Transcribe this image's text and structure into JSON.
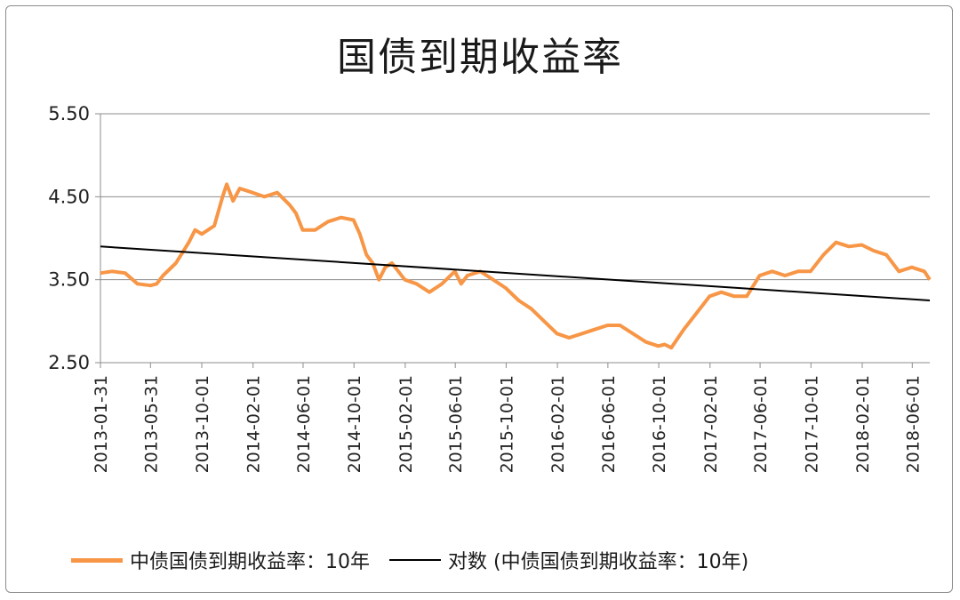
{
  "chart_data": {
    "type": "line",
    "title": "国债到期收益率",
    "xlabel": "",
    "ylabel": "",
    "ylim": [
      2.5,
      5.5
    ],
    "yticks": [
      2.5,
      3.5,
      4.5,
      5.5
    ],
    "ytick_labels": [
      "2.50",
      "3.50",
      "4.50",
      "5.50"
    ],
    "xtick_labels": [
      "2013-01-31",
      "2013-05-31",
      "2013-10-01",
      "2014-02-01",
      "2014-06-01",
      "2014-10-01",
      "2015-02-01",
      "2015-06-01",
      "2015-10-01",
      "2016-02-01",
      "2016-06-01",
      "2016-10-01",
      "2017-02-01",
      "2017-06-01",
      "2017-10-01",
      "2018-02-01",
      "2018-06-01"
    ],
    "x_range": [
      "2013-01-31",
      "2018-07-13"
    ],
    "grid": true,
    "legend_position": "bottom",
    "series": [
      {
        "name": "中债国债到期收益率：10年",
        "color": "#f79646",
        "points": [
          [
            "2013-01-31",
            3.58
          ],
          [
            "2013-02-28",
            3.6
          ],
          [
            "2013-03-31",
            3.58
          ],
          [
            "2013-04-30",
            3.45
          ],
          [
            "2013-05-31",
            3.43
          ],
          [
            "2013-06-15",
            3.45
          ],
          [
            "2013-06-30",
            3.55
          ],
          [
            "2013-07-31",
            3.7
          ],
          [
            "2013-08-31",
            3.95
          ],
          [
            "2013-09-15",
            4.1
          ],
          [
            "2013-10-01",
            4.05
          ],
          [
            "2013-10-31",
            4.15
          ],
          [
            "2013-11-20",
            4.5
          ],
          [
            "2013-11-30",
            4.65
          ],
          [
            "2013-12-15",
            4.45
          ],
          [
            "2013-12-31",
            4.6
          ],
          [
            "2014-01-31",
            4.55
          ],
          [
            "2014-02-28",
            4.5
          ],
          [
            "2014-03-31",
            4.55
          ],
          [
            "2014-04-30",
            4.4
          ],
          [
            "2014-05-15",
            4.3
          ],
          [
            "2014-05-31",
            4.1
          ],
          [
            "2014-06-30",
            4.1
          ],
          [
            "2014-07-31",
            4.2
          ],
          [
            "2014-08-31",
            4.25
          ],
          [
            "2014-09-30",
            4.22
          ],
          [
            "2014-10-15",
            4.05
          ],
          [
            "2014-10-31",
            3.8
          ],
          [
            "2014-11-15",
            3.7
          ],
          [
            "2014-11-30",
            3.5
          ],
          [
            "2014-12-15",
            3.65
          ],
          [
            "2014-12-31",
            3.7
          ],
          [
            "2015-01-31",
            3.5
          ],
          [
            "2015-02-28",
            3.45
          ],
          [
            "2015-03-31",
            3.35
          ],
          [
            "2015-04-30",
            3.45
          ],
          [
            "2015-05-31",
            3.6
          ],
          [
            "2015-06-15",
            3.45
          ],
          [
            "2015-06-30",
            3.55
          ],
          [
            "2015-07-31",
            3.6
          ],
          [
            "2015-08-31",
            3.5
          ],
          [
            "2015-09-30",
            3.4
          ],
          [
            "2015-10-31",
            3.25
          ],
          [
            "2015-11-30",
            3.15
          ],
          [
            "2015-12-31",
            3.0
          ],
          [
            "2016-01-31",
            2.85
          ],
          [
            "2016-02-29",
            2.8
          ],
          [
            "2016-03-31",
            2.85
          ],
          [
            "2016-04-30",
            2.9
          ],
          [
            "2016-05-31",
            2.95
          ],
          [
            "2016-06-30",
            2.95
          ],
          [
            "2016-07-31",
            2.85
          ],
          [
            "2016-08-31",
            2.75
          ],
          [
            "2016-09-30",
            2.7
          ],
          [
            "2016-10-15",
            2.72
          ],
          [
            "2016-10-31",
            2.68
          ],
          [
            "2016-11-30",
            2.9
          ],
          [
            "2016-12-31",
            3.1
          ],
          [
            "2017-01-31",
            3.3
          ],
          [
            "2017-02-28",
            3.35
          ],
          [
            "2017-03-31",
            3.3
          ],
          [
            "2017-04-30",
            3.3
          ],
          [
            "2017-05-31",
            3.55
          ],
          [
            "2017-06-30",
            3.6
          ],
          [
            "2017-07-31",
            3.55
          ],
          [
            "2017-08-31",
            3.6
          ],
          [
            "2017-09-30",
            3.6
          ],
          [
            "2017-10-31",
            3.8
          ],
          [
            "2017-11-30",
            3.95
          ],
          [
            "2017-12-31",
            3.9
          ],
          [
            "2018-01-31",
            3.92
          ],
          [
            "2018-02-28",
            3.85
          ],
          [
            "2018-03-31",
            3.8
          ],
          [
            "2018-04-30",
            3.6
          ],
          [
            "2018-05-31",
            3.65
          ],
          [
            "2018-06-30",
            3.6
          ],
          [
            "2018-07-13",
            3.5
          ]
        ]
      },
      {
        "name": "对数 (中债国债到期收益率：10年)",
        "color": "#000000",
        "points": [
          [
            "2013-01-31",
            3.9
          ],
          [
            "2018-07-13",
            3.25
          ]
        ]
      }
    ]
  }
}
